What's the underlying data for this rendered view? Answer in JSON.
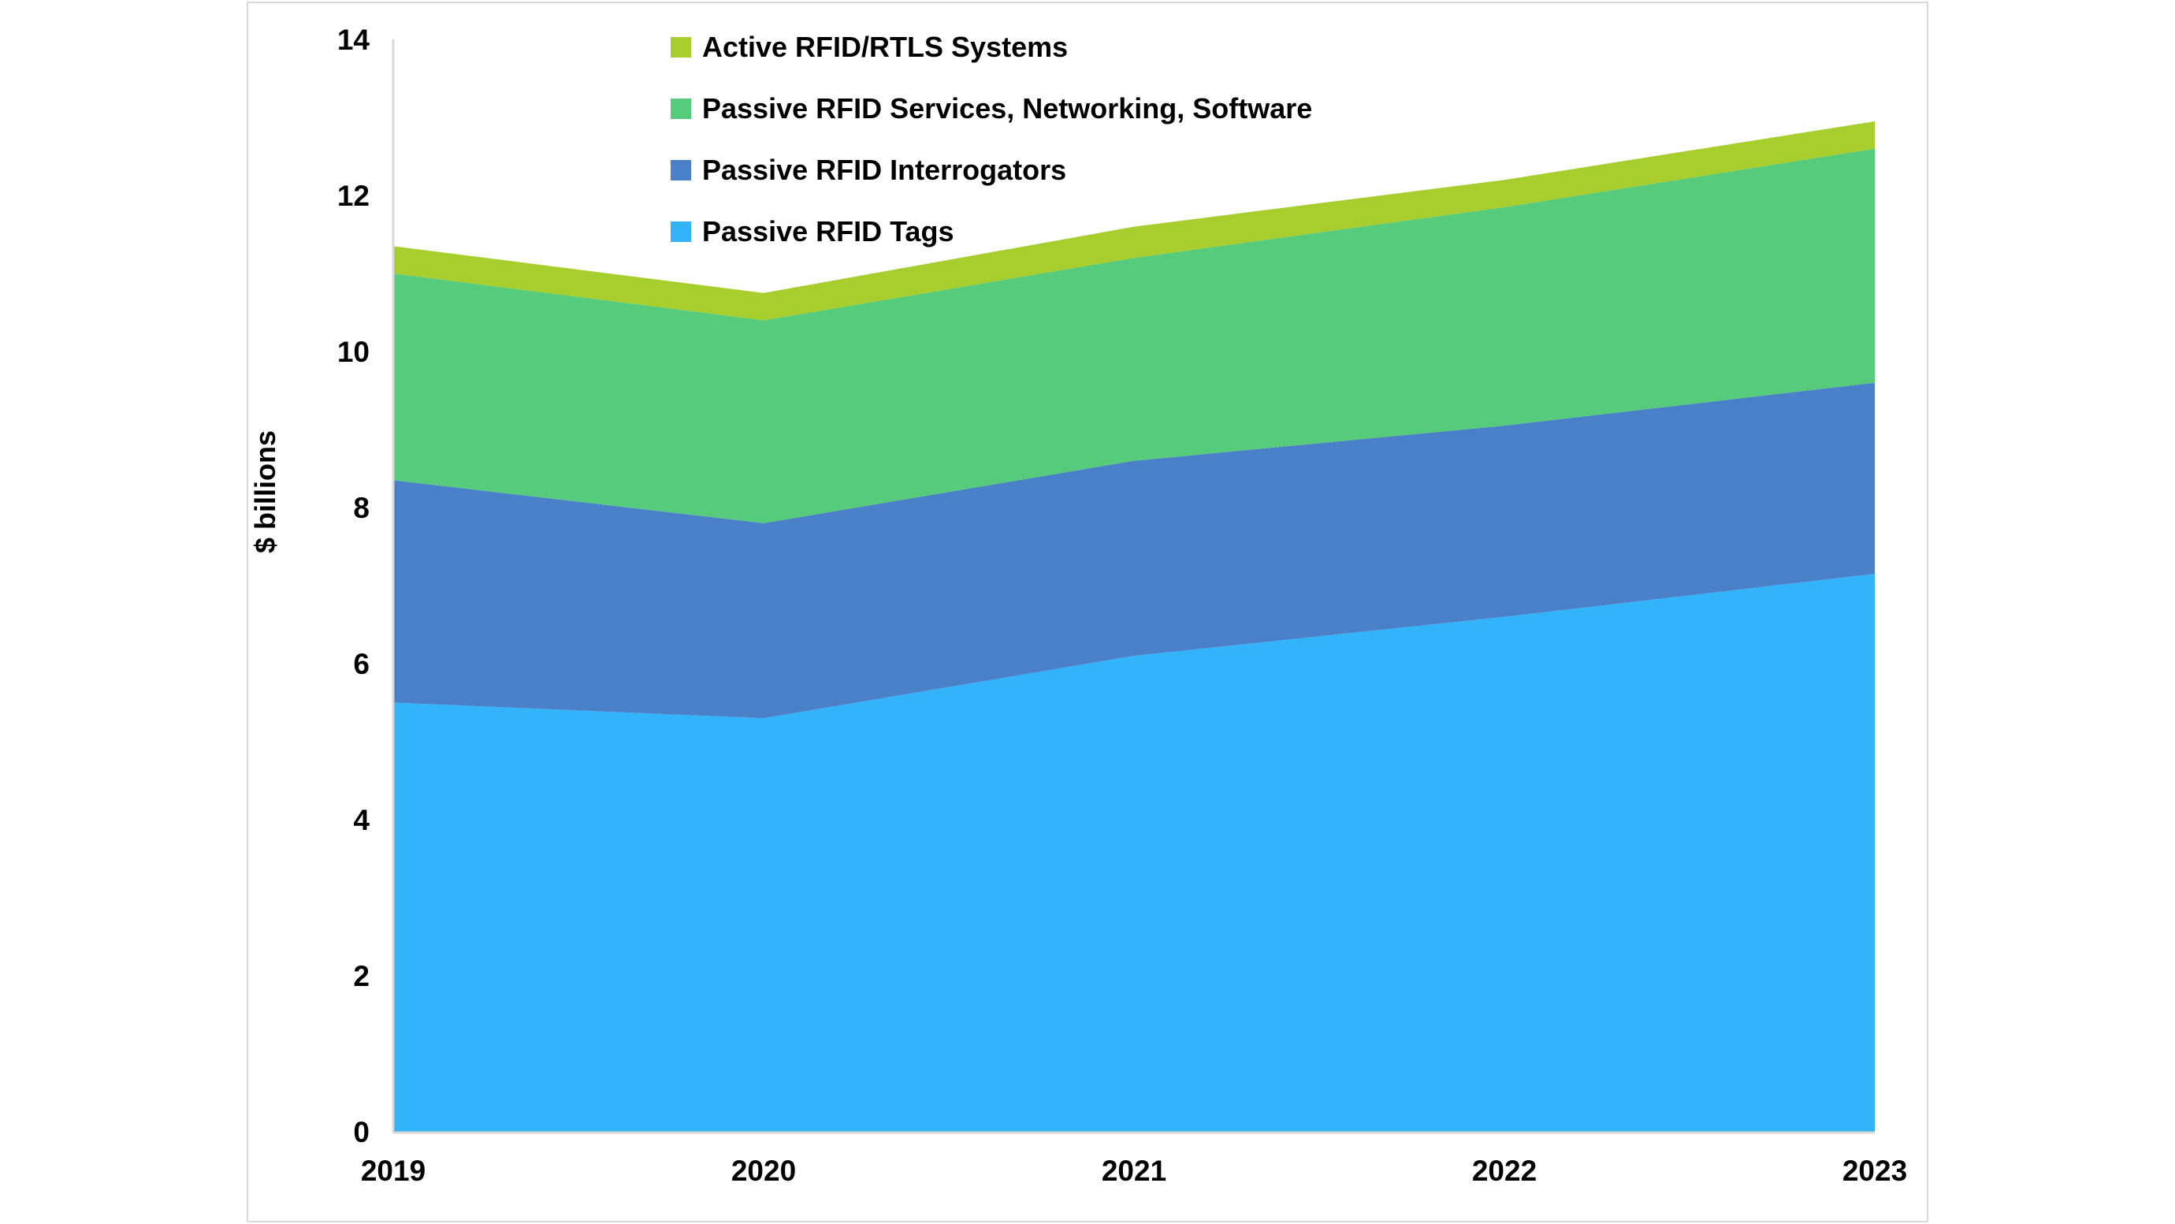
{
  "panel": {
    "background": "#ffffff",
    "border_color": "#d9d9d9"
  },
  "chart_data": {
    "type": "area",
    "stacked": true,
    "title": "",
    "ylabel": "$ billions",
    "xlabel": "",
    "categories": [
      "2019",
      "2020",
      "2021",
      "2022",
      "2023"
    ],
    "series": [
      {
        "name": "Passive RFID Tags",
        "color": "#33b3fa",
        "values": [
          5.5,
          5.3,
          6.1,
          6.6,
          7.15
        ]
      },
      {
        "name": "Passive RFID Interrogators",
        "color": "#4a80c8",
        "values": [
          2.85,
          2.5,
          2.5,
          2.45,
          2.45
        ]
      },
      {
        "name": "Passive RFID Services, Networking, Software",
        "color": "#57cb7c",
        "values": [
          2.65,
          2.6,
          2.6,
          2.8,
          3.0
        ]
      },
      {
        "name": "Active RFID/RTLS Systems",
        "color": "#a8ce2e",
        "values": [
          0.35,
          0.35,
          0.4,
          0.35,
          0.35
        ]
      }
    ],
    "stack_totals": [
      11.35,
      10.75,
      11.6,
      12.2,
      12.95
    ],
    "y_axis": {
      "min": 0,
      "max": 14,
      "tick_step": 2,
      "ticks": [
        "0",
        "2",
        "4",
        "6",
        "8",
        "10",
        "12",
        "14"
      ]
    },
    "x_axis": {
      "ticks": [
        "2019",
        "2020",
        "2021",
        "2022",
        "2023"
      ]
    },
    "grid": "off",
    "legend_position": "top-left-inside",
    "legend_order_top_to_bottom": [
      3,
      2,
      1,
      0
    ],
    "axis_line_color": "#d9d9d9",
    "text_color": "#000000"
  }
}
